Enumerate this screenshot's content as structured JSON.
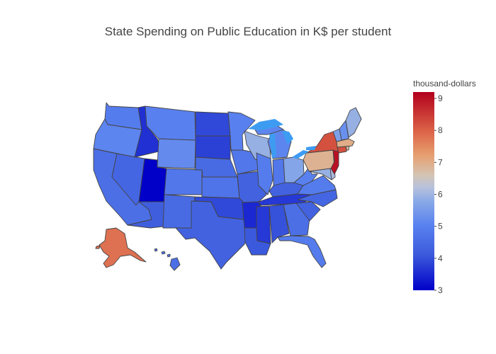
{
  "chart_data": {
    "type": "choropleth",
    "title": "State Spending on Public Education in K$ per student",
    "colorbar": {
      "title": "thousand-dollars",
      "range": [
        3,
        9.2
      ],
      "ticks": [
        "3",
        "4",
        "5",
        "6",
        "7",
        "8",
        "9"
      ],
      "colorscale": [
        [
          0.0,
          "#0000c8"
        ],
        [
          0.18,
          "#3c5adc"
        ],
        [
          0.33,
          "#5a82f0"
        ],
        [
          0.45,
          "#8aaae6"
        ],
        [
          0.52,
          "#b8c2dc"
        ],
        [
          0.58,
          "#d4c4b4"
        ],
        [
          0.68,
          "#e6a070"
        ],
        [
          0.8,
          "#dc6448"
        ],
        [
          1.0,
          "#b2001c"
        ]
      ]
    },
    "scope": "usa",
    "states": {
      "WA": 4.9,
      "OR": 5.1,
      "CA": 4.6,
      "NV": 4.4,
      "ID": 3.6,
      "MT": 5.0,
      "WY": 5.2,
      "UT": 3.0,
      "CO": 4.8,
      "AZ": 4.2,
      "NM": 4.5,
      "ND": 3.9,
      "SD": 3.8,
      "NE": 4.5,
      "KS": 4.7,
      "OK": 3.9,
      "TX": 4.3,
      "MN": 5.0,
      "IA": 4.8,
      "MO": 4.3,
      "AR": 3.5,
      "LA": 4.1,
      "WI": 5.9,
      "IL": 4.9,
      "MI": 5.1,
      "IN": 4.8,
      "OH": 5.7,
      "KY": 4.3,
      "TN": 3.7,
      "MS": 3.7,
      "AL": 4.0,
      "GA": 4.6,
      "FL": 4.9,
      "SC": 4.3,
      "NC": 4.4,
      "VA": 4.9,
      "WV": 5.0,
      "PA": 6.9,
      "NY": 8.2,
      "VT": 5.6,
      "NH": 5.3,
      "ME": 5.9,
      "MA": 7.0,
      "RI": 6.8,
      "CT": 8.2,
      "NJ": 9.0,
      "DE": 6.1,
      "MD": 5.9,
      "AK": 7.8,
      "HI": 4.6
    }
  }
}
